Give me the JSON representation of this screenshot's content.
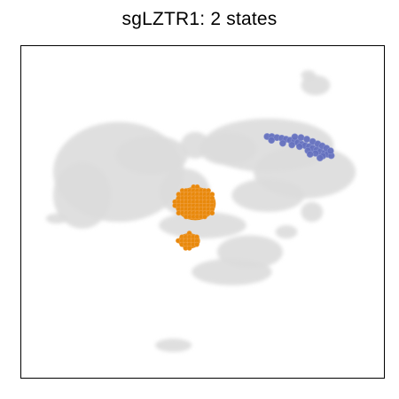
{
  "chart_data": {
    "type": "scatter",
    "title": "sgLZTR1: 2 states",
    "xlabel": "",
    "ylabel": "",
    "grid": false,
    "legend": "none",
    "axis_ticks": false,
    "xlim": [
      0,
      100
    ],
    "ylim": [
      0,
      100
    ],
    "colors": {
      "background_cells": "#dcdcdc",
      "state_1": "#6470be",
      "state_2": "#e8890c",
      "frame": "#000000"
    },
    "series": [
      {
        "role": "background cells",
        "color": "#dcdcdc",
        "regions": [
          {
            "cx": 27,
            "cy": 62,
            "rx": 18,
            "ry": 15
          },
          {
            "cx": 17,
            "cy": 55,
            "rx": 8,
            "ry": 10
          },
          {
            "cx": 36,
            "cy": 67,
            "rx": 10,
            "ry": 6
          },
          {
            "cx": 45,
            "cy": 56,
            "rx": 7,
            "ry": 7
          },
          {
            "cx": 68,
            "cy": 70,
            "rx": 18,
            "ry": 8
          },
          {
            "cx": 78,
            "cy": 62,
            "rx": 14,
            "ry": 8
          },
          {
            "cx": 68,
            "cy": 55,
            "rx": 10,
            "ry": 5
          },
          {
            "cx": 57,
            "cy": 69,
            "rx": 8,
            "ry": 5
          },
          {
            "cx": 50,
            "cy": 46,
            "rx": 12,
            "ry": 4
          },
          {
            "cx": 63,
            "cy": 38,
            "rx": 9,
            "ry": 5
          },
          {
            "cx": 58,
            "cy": 32,
            "rx": 11,
            "ry": 4
          },
          {
            "cx": 80,
            "cy": 50,
            "rx": 3,
            "ry": 3
          },
          {
            "cx": 73,
            "cy": 44,
            "rx": 3,
            "ry": 2
          },
          {
            "cx": 81,
            "cy": 88,
            "rx": 4,
            "ry": 3
          },
          {
            "cx": 79,
            "cy": 91,
            "rx": 2,
            "ry": 1.5
          },
          {
            "cx": 10,
            "cy": 48,
            "rx": 3,
            "ry": 1.5
          },
          {
            "cx": 42,
            "cy": 10,
            "rx": 5,
            "ry": 2
          },
          {
            "cx": 48,
            "cy": 70,
            "rx": 4,
            "ry": 4
          }
        ]
      },
      {
        "name": "",
        "role": "state 1",
        "color": "#6470be",
        "points": [
          [
            67.7,
            72.6
          ],
          [
            69.0,
            72.6
          ],
          [
            70.4,
            72.3
          ],
          [
            71.7,
            72.1
          ],
          [
            72.9,
            71.8
          ],
          [
            74.0,
            71.5
          ],
          [
            75.2,
            71.3
          ],
          [
            76.1,
            70.8
          ],
          [
            77.2,
            70.3
          ],
          [
            78.1,
            69.9
          ],
          [
            79.2,
            69.6
          ],
          [
            80.2,
            69.1
          ],
          [
            81.3,
            68.6
          ],
          [
            82.3,
            68.1
          ],
          [
            83.4,
            67.6
          ],
          [
            84.3,
            67.3
          ],
          [
            85.3,
            66.9
          ],
          [
            75.3,
            72.5
          ],
          [
            77.0,
            72.3
          ],
          [
            78.6,
            71.8
          ],
          [
            80.2,
            71.1
          ],
          [
            81.6,
            70.4
          ],
          [
            82.8,
            69.8
          ],
          [
            84.0,
            69.1
          ],
          [
            85.1,
            68.3
          ],
          [
            76.6,
            69.6
          ],
          [
            78.9,
            68.4
          ],
          [
            81.0,
            67.6
          ],
          [
            83.0,
            66.8
          ],
          [
            68.9,
            71.5
          ],
          [
            72.0,
            70.6
          ],
          [
            74.5,
            70.1
          ],
          [
            79.5,
            67.3
          ],
          [
            82.2,
            66.2
          ]
        ]
      },
      {
        "name": "",
        "role": "state 2",
        "color": "#e8890c",
        "clusters": [
          {
            "cx": 48.0,
            "cy": 52.5,
            "rx": 5.6,
            "ry": 5.0
          },
          {
            "cx": 46.3,
            "cy": 41.3,
            "rx": 3.0,
            "ry": 2.3
          }
        ]
      }
    ]
  }
}
